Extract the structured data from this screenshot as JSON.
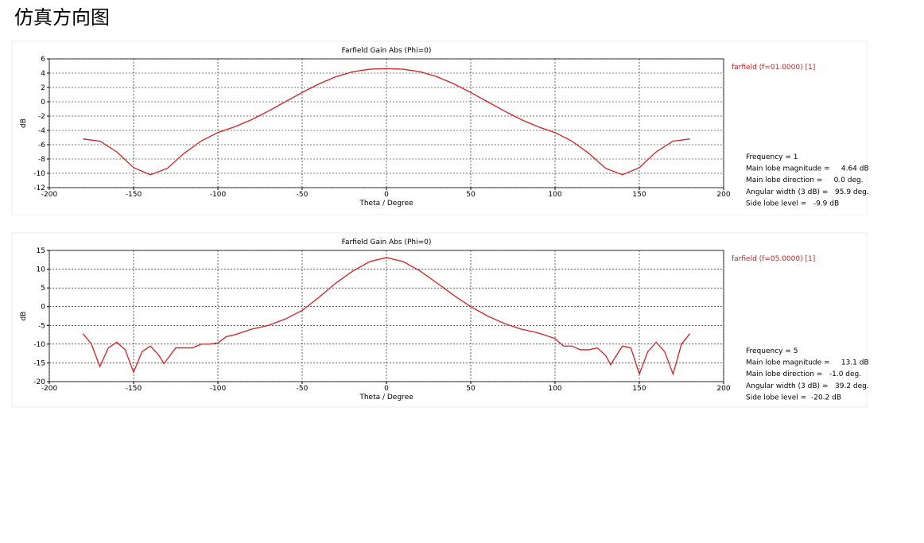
{
  "heading": "仿真方向图",
  "chart_data": [
    {
      "type": "line",
      "title": "Farfield Gain Abs (Phi=0)",
      "xlabel": "Theta / Degree",
      "ylabel": "dB",
      "x": [
        -180,
        -170,
        -160,
        -150,
        -140,
        -130,
        -120,
        -110,
        -100,
        -90,
        -80,
        -70,
        -60,
        -50,
        -40,
        -30,
        -20,
        -10,
        0,
        10,
        20,
        30,
        40,
        50,
        60,
        70,
        80,
        90,
        100,
        110,
        120,
        130,
        140,
        150,
        160,
        170,
        180
      ],
      "series": [
        {
          "name": "farfield (f=01.0000) [1]",
          "color": "#d42020",
          "values": [
            -5.2,
            -5.5,
            -7.0,
            -9.2,
            -10.2,
            -9.3,
            -7.2,
            -5.5,
            -4.3,
            -3.5,
            -2.5,
            -1.3,
            0.0,
            1.3,
            2.5,
            3.5,
            4.2,
            4.55,
            4.64,
            4.55,
            4.2,
            3.5,
            2.5,
            1.3,
            0.0,
            -1.3,
            -2.5,
            -3.5,
            -4.3,
            -5.5,
            -7.2,
            -9.3,
            -10.2,
            -9.2,
            -7.0,
            -5.5,
            -5.2
          ]
        }
      ],
      "xlim": [
        -200,
        200
      ],
      "xticks": [
        -200,
        -150,
        -100,
        -50,
        0,
        50,
        100,
        150,
        200
      ],
      "ylim": [
        -12,
        6
      ],
      "yticks": [
        -12,
        -10,
        -8,
        -6,
        -4,
        -2,
        0,
        2,
        4,
        6
      ],
      "grid": true,
      "legend": "right",
      "annotations": [
        "Frequency = 1",
        "Main lobe magnitude =     4.64 dB",
        "Main lobe direction =     0.0 deg.",
        "Angular width (3 dB) =   95.9 deg.",
        "Side lobe level =   -9.9 dB"
      ]
    },
    {
      "type": "line",
      "title": "Farfield Gain Abs (Phi=0)",
      "xlabel": "Theta / Degree",
      "ylabel": "dB",
      "x": [
        -180,
        -175,
        -170,
        -165,
        -160,
        -155,
        -150,
        -145,
        -140,
        -135,
        -132,
        -130,
        -125,
        -120,
        -115,
        -110,
        -105,
        -100,
        -95,
        -90,
        -80,
        -70,
        -60,
        -50,
        -40,
        -30,
        -20,
        -10,
        0,
        10,
        20,
        30,
        40,
        50,
        60,
        70,
        80,
        90,
        100,
        105,
        110,
        115,
        120,
        125,
        130,
        133,
        135,
        140,
        145,
        150,
        155,
        160,
        165,
        170,
        175,
        180
      ],
      "series": [
        {
          "name": "farfield (f=05.0000) [1]",
          "color": "#d42020",
          "values": [
            -7.2,
            -10,
            -16,
            -11,
            -9.5,
            -11.5,
            -17.5,
            -12,
            -10.5,
            -13,
            -15.2,
            -14,
            -11,
            -11,
            -11,
            -10,
            -10,
            -9.7,
            -8,
            -7.5,
            -6,
            -5,
            -3.3,
            -1,
            2.5,
            6.3,
            9.5,
            12,
            13.1,
            12,
            9.5,
            6.3,
            3,
            0,
            -2.5,
            -4.5,
            -6,
            -7,
            -8.5,
            -10.5,
            -10.5,
            -11.5,
            -11.5,
            -11,
            -13,
            -15.5,
            -14,
            -10.5,
            -11,
            -18,
            -12,
            -9.5,
            -12,
            -18,
            -10,
            -7.2
          ]
        }
      ],
      "xlim": [
        -200,
        200
      ],
      "xticks": [
        -200,
        -150,
        -100,
        -50,
        0,
        50,
        100,
        150,
        200
      ],
      "ylim": [
        -20,
        15
      ],
      "yticks": [
        -20,
        -15,
        -10,
        -5,
        0,
        5,
        10,
        15
      ],
      "grid": true,
      "legend": "right",
      "annotations": [
        "Frequency = 5",
        "Main lobe magnitude =     13.1 dB",
        "Main lobe direction =   -1.0 deg.",
        "Angular width (3 dB) =   39.2 deg.",
        "Side lobe level =  -20.2 dB"
      ]
    }
  ]
}
